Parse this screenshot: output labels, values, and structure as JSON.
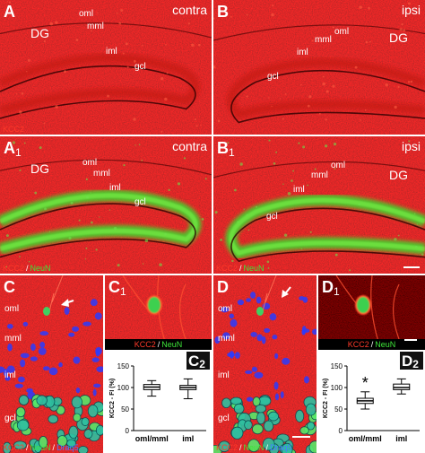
{
  "panels": [
    {
      "letter": "A",
      "tag": "contra",
      "regions": [
        "DG",
        "oml",
        "mml",
        "iml",
        "gcl"
      ],
      "stain": [
        {
          "text": "KCC2",
          "color": "#ff3a2a"
        }
      ]
    },
    {
      "letter": "B",
      "tag": "ipsi",
      "regions": [
        "oml",
        "mml",
        "DG",
        "iml",
        "gcl"
      ]
    },
    {
      "letter": "A",
      "sub": "1",
      "tag": "contra",
      "regions": [
        "DG",
        "oml",
        "mml",
        "iml",
        "gcl"
      ],
      "stain": [
        {
          "text": "KCC2",
          "color": "#ff3a2a"
        },
        {
          "text": "/",
          "color": "#ffffff"
        },
        {
          "text": "NeuN",
          "color": "#3ee63a"
        }
      ]
    },
    {
      "letter": "B",
      "sub": "1",
      "tag": "ipsi",
      "regions": [
        "oml",
        "mml",
        "DG",
        "iml",
        "gcl"
      ],
      "stain": [
        {
          "text": "KCC2",
          "color": "#ff3a2a"
        },
        {
          "text": "/",
          "color": "#ffffff"
        },
        {
          "text": "NeuN",
          "color": "#3ee63a"
        }
      ]
    },
    {
      "letter": "C",
      "regions": [
        "oml",
        "mml",
        "iml",
        "gcl"
      ],
      "stain": [
        {
          "text": "KCC2",
          "color": "#ff3a2a"
        },
        {
          "text": "/",
          "color": "#ffffff"
        },
        {
          "text": "NeuN",
          "color": "#3ee63a"
        },
        {
          "text": "/",
          "color": "#ffffff"
        },
        {
          "text": "Draq5",
          "color": "#4a78ff"
        }
      ]
    },
    {
      "letter": "C",
      "sub": "1",
      "stain": [
        {
          "text": "KCC2",
          "color": "#ff3a2a"
        },
        {
          "text": "/",
          "color": "#ffffff"
        },
        {
          "text": "NeuN",
          "color": "#3ee63a"
        }
      ]
    },
    {
      "letter": "D",
      "regions": [
        "oml",
        "mml",
        "iml",
        "gcl"
      ],
      "stain": [
        {
          "text": "KCC2",
          "color": "#ff3a2a"
        },
        {
          "text": "/",
          "color": "#ffffff"
        },
        {
          "text": "NeuN",
          "color": "#3ee63a"
        },
        {
          "text": "/",
          "color": "#ffffff"
        },
        {
          "text": "Draq5",
          "color": "#4a78ff"
        }
      ]
    },
    {
      "letter": "D",
      "sub": "1",
      "stain": [
        {
          "text": "KCC2",
          "color": "#ff3a2a"
        },
        {
          "text": "/",
          "color": "#ffffff"
        },
        {
          "text": "NeuN",
          "color": "#3ee63a"
        }
      ]
    }
  ],
  "chart_data": [
    {
      "type": "box",
      "letter": "C",
      "sub": "2",
      "ylabel": "KCC2 - FI (%)",
      "categories": [
        "oml/mml",
        "iml"
      ],
      "boxes": [
        {
          "min": 80,
          "q1": 95,
          "median": 101,
          "q3": 107,
          "max": 116
        },
        {
          "min": 74,
          "q1": 95,
          "median": 100,
          "q3": 105,
          "max": 120
        }
      ],
      "ylim": [
        0,
        150
      ],
      "yticks": [
        0,
        50,
        100,
        150
      ]
    },
    {
      "type": "box",
      "letter": "D",
      "sub": "2",
      "ylabel": "KCC2 - FI (%)",
      "categories": [
        "oml/mml",
        "iml"
      ],
      "boxes": [
        {
          "min": 50,
          "q1": 63,
          "median": 69,
          "q3": 75,
          "max": 90
        },
        {
          "min": 85,
          "q1": 95,
          "median": 100,
          "q3": 108,
          "max": 120
        }
      ],
      "annotation": "*",
      "ylim": [
        0,
        150
      ],
      "yticks": [
        0,
        50,
        100,
        150
      ]
    }
  ]
}
